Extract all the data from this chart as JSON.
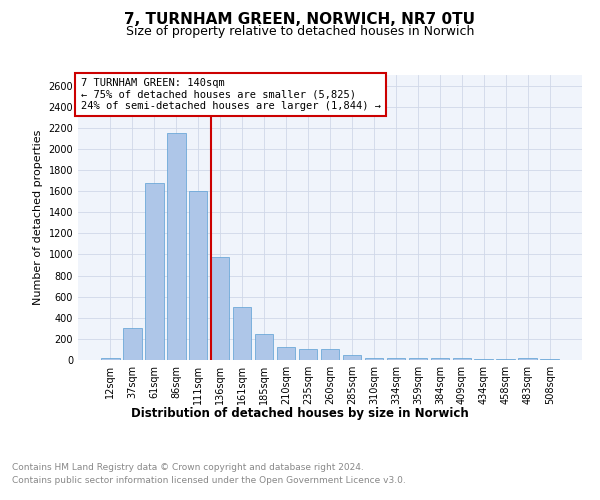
{
  "title": "7, TURNHAM GREEN, NORWICH, NR7 0TU",
  "subtitle": "Size of property relative to detached houses in Norwich",
  "xlabel": "Distribution of detached houses by size in Norwich",
  "ylabel": "Number of detached properties",
  "categories": [
    "12sqm",
    "37sqm",
    "61sqm",
    "86sqm",
    "111sqm",
    "136sqm",
    "161sqm",
    "185sqm",
    "210sqm",
    "235sqm",
    "260sqm",
    "285sqm",
    "310sqm",
    "334sqm",
    "359sqm",
    "384sqm",
    "409sqm",
    "434sqm",
    "458sqm",
    "483sqm",
    "508sqm"
  ],
  "values": [
    20,
    300,
    1675,
    2150,
    1600,
    975,
    500,
    245,
    120,
    100,
    100,
    50,
    15,
    15,
    20,
    15,
    20,
    5,
    5,
    20,
    5
  ],
  "bar_color": "#aec6e8",
  "bar_edgecolor": "#5a9fd4",
  "vline_index": 5,
  "vline_color": "#cc0000",
  "annotation_box_text": "7 TURNHAM GREEN: 140sqm\n← 75% of detached houses are smaller (5,825)\n24% of semi-detached houses are larger (1,844) →",
  "annotation_box_color": "#cc0000",
  "ylim": [
    0,
    2700
  ],
  "yticks": [
    0,
    200,
    400,
    600,
    800,
    1000,
    1200,
    1400,
    1600,
    1800,
    2000,
    2200,
    2400,
    2600
  ],
  "grid_color": "#d0d8e8",
  "bg_color": "#f0f4fb",
  "footer_line1": "Contains HM Land Registry data © Crown copyright and database right 2024.",
  "footer_line2": "Contains public sector information licensed under the Open Government Licence v3.0.",
  "title_fontsize": 11,
  "subtitle_fontsize": 9,
  "ylabel_fontsize": 8,
  "xlabel_fontsize": 8.5,
  "tick_fontsize": 7,
  "footer_fontsize": 6.5,
  "annotation_fontsize": 7.5
}
